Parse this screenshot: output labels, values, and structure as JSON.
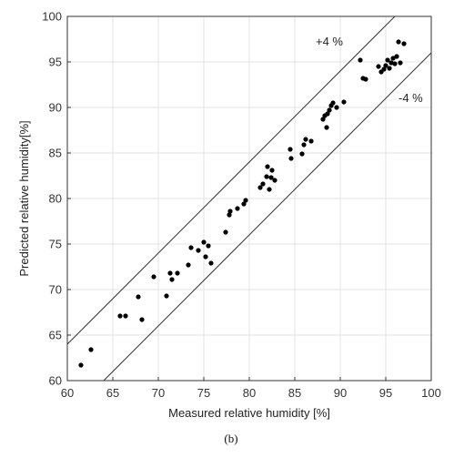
{
  "chart_data": {
    "type": "scatter",
    "xlabel": "Measured relative humidity [%]",
    "ylabel": "Predicted relative humidity[%]",
    "xlim": [
      60,
      100
    ],
    "ylim": [
      60,
      100
    ],
    "xticks": [
      60,
      65,
      70,
      75,
      80,
      85,
      90,
      95,
      100
    ],
    "yticks": [
      60,
      65,
      70,
      75,
      80,
      85,
      90,
      95,
      100
    ],
    "grid": true,
    "caption": "(b)",
    "reference_lines": [
      {
        "label": "+4 %",
        "offset": 4
      },
      {
        "label": "-4 %",
        "offset": -4
      }
    ],
    "points": [
      [
        61.5,
        61.7
      ],
      [
        62.6,
        63.4
      ],
      [
        65.8,
        67.1
      ],
      [
        66.4,
        67.1
      ],
      [
        67.8,
        69.2
      ],
      [
        68.2,
        66.7
      ],
      [
        69.5,
        71.4
      ],
      [
        70.9,
        69.3
      ],
      [
        71.3,
        71.8
      ],
      [
        71.5,
        71.1
      ],
      [
        72.1,
        71.8
      ],
      [
        73.3,
        72.7
      ],
      [
        73.6,
        74.6
      ],
      [
        74.4,
        74.3
      ],
      [
        75.0,
        75.2
      ],
      [
        75.2,
        73.6
      ],
      [
        75.8,
        72.9
      ],
      [
        75.5,
        74.8
      ],
      [
        77.4,
        76.3
      ],
      [
        77.8,
        78.2
      ],
      [
        77.9,
        78.6
      ],
      [
        78.7,
        78.9
      ],
      [
        79.4,
        79.4
      ],
      [
        79.6,
        79.8
      ],
      [
        81.2,
        81.2
      ],
      [
        81.5,
        81.6
      ],
      [
        81.9,
        82.4
      ],
      [
        82.0,
        83.5
      ],
      [
        82.2,
        81.0
      ],
      [
        82.4,
        82.3
      ],
      [
        82.5,
        83.1
      ],
      [
        82.8,
        82.0
      ],
      [
        84.5,
        85.4
      ],
      [
        84.6,
        84.4
      ],
      [
        85.8,
        84.9
      ],
      [
        86.0,
        85.9
      ],
      [
        86.2,
        86.5
      ],
      [
        86.8,
        86.3
      ],
      [
        88.1,
        88.7
      ],
      [
        88.3,
        89.1
      ],
      [
        88.5,
        87.8
      ],
      [
        88.6,
        89.3
      ],
      [
        88.8,
        89.7
      ],
      [
        89.0,
        90.2
      ],
      [
        89.2,
        90.5
      ],
      [
        89.6,
        90.0
      ],
      [
        90.4,
        90.6
      ],
      [
        92.2,
        95.2
      ],
      [
        92.5,
        93.2
      ],
      [
        92.8,
        93.1
      ],
      [
        94.2,
        94.5
      ],
      [
        94.5,
        93.9
      ],
      [
        94.8,
        94.2
      ],
      [
        95.0,
        94.6
      ],
      [
        95.2,
        95.2
      ],
      [
        95.4,
        94.3
      ],
      [
        95.6,
        94.9
      ],
      [
        95.8,
        95.4
      ],
      [
        96.0,
        94.8
      ],
      [
        96.2,
        95.6
      ],
      [
        96.4,
        97.2
      ],
      [
        96.6,
        94.9
      ],
      [
        97.0,
        97.0
      ]
    ]
  }
}
